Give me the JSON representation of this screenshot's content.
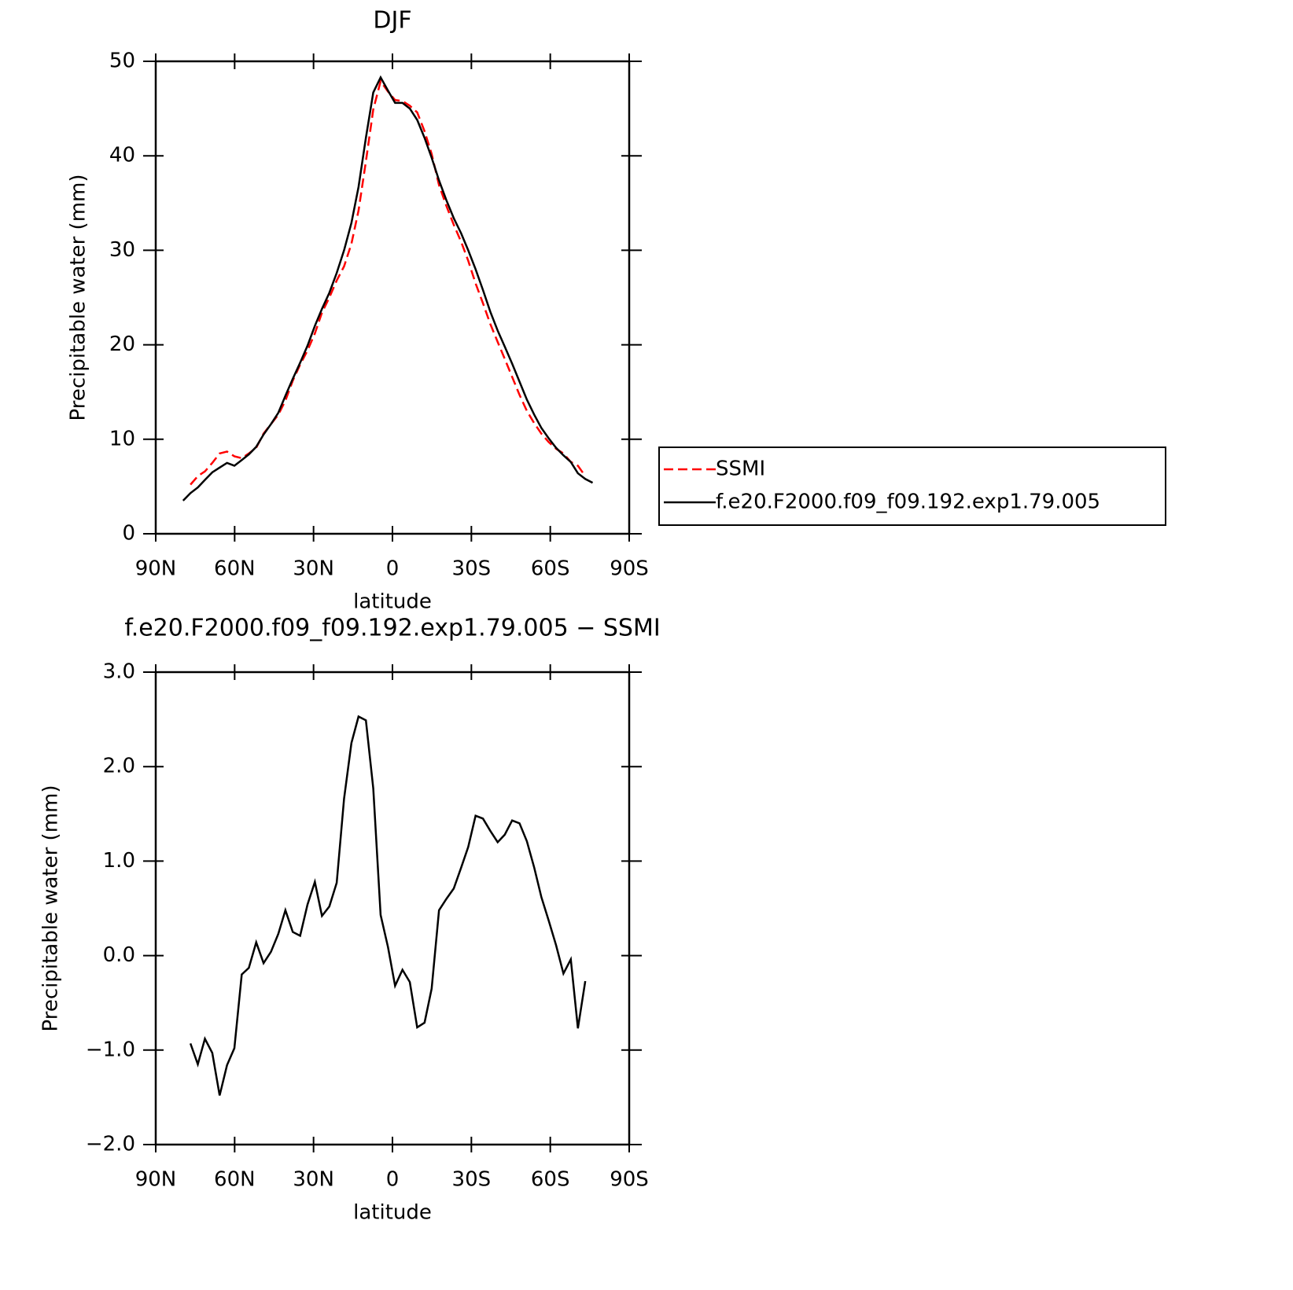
{
  "chart_data": [
    {
      "type": "line",
      "title": "DJF",
      "xlabel": "latitude",
      "ylabel": "Precipitable water (mm)",
      "xlim": [
        90,
        -90
      ],
      "xticks": [
        {
          "value": 90,
          "label": "90N"
        },
        {
          "value": 60,
          "label": "60N"
        },
        {
          "value": 30,
          "label": "30N"
        },
        0,
        {
          "value": -30,
          "label": "30S"
        },
        {
          "value": -60,
          "label": "60S"
        },
        {
          "value": -90,
          "label": "90S"
        }
      ],
      "ylim": [
        0,
        50
      ],
      "yticks": [
        0,
        10,
        20,
        30,
        40,
        50
      ],
      "legend": "right",
      "series": [
        {
          "name": "SSMI",
          "color": "#ff0000",
          "linestyle": "dashed",
          "x": [
            76.8,
            74.0,
            71.3,
            68.5,
            65.7,
            62.9,
            60.1,
            57.3,
            54.6,
            51.8,
            49.0,
            46.2,
            43.4,
            40.7,
            37.9,
            35.1,
            32.3,
            29.5,
            26.8,
            24.0,
            21.2,
            18.4,
            15.6,
            12.9,
            10.1,
            7.3,
            4.5,
            1.7,
            -1.0,
            -3.8,
            -6.6,
            -9.4,
            -12.2,
            -14.9,
            -17.7,
            -20.5,
            -23.3,
            -26.1,
            -28.8,
            -31.6,
            -34.4,
            -37.2,
            -40.0,
            -42.7,
            -45.5,
            -48.3,
            -51.1,
            -53.9,
            -56.6,
            -59.4,
            -62.2,
            -65.0,
            -67.8,
            -70.5,
            -73.3
          ],
          "values": [
            5.2,
            6.1,
            6.6,
            7.5,
            8.5,
            8.7,
            8.2,
            8.0,
            8.5,
            9.1,
            10.6,
            11.6,
            12.6,
            14.1,
            16.2,
            17.9,
            19.4,
            21.2,
            23.4,
            25.0,
            26.8,
            28.3,
            30.7,
            34.2,
            39.4,
            44.9,
            47.9,
            46.8,
            45.9,
            45.8,
            45.3,
            44.6,
            42.6,
            40.2,
            36.9,
            34.7,
            32.7,
            30.9,
            28.9,
            26.5,
            24.4,
            22.2,
            20.3,
            18.5,
            16.6,
            14.7,
            13.0,
            11.7,
            10.6,
            9.7,
            9.0,
            8.5,
            7.6,
            7.2,
            6.1
          ]
        },
        {
          "name": "f.e20.F2000.f09_f09.192.exp1.79.005",
          "color": "#000000",
          "linestyle": "solid",
          "x": [
            79.6,
            76.8,
            74.0,
            71.3,
            68.5,
            65.7,
            62.9,
            60.1,
            57.3,
            54.6,
            51.8,
            49.0,
            46.2,
            43.4,
            40.7,
            37.9,
            35.1,
            32.3,
            29.5,
            26.8,
            24.0,
            21.2,
            18.4,
            15.6,
            12.9,
            10.1,
            7.3,
            4.5,
            1.7,
            -1.0,
            -3.8,
            -6.6,
            -9.4,
            -12.2,
            -14.9,
            -17.7,
            -20.5,
            -23.3,
            -26.1,
            -28.8,
            -31.6,
            -34.4,
            -37.2,
            -40.0,
            -42.7,
            -45.5,
            -48.3,
            -51.1,
            -53.9,
            -56.6,
            -59.4,
            -62.2,
            -65.0,
            -67.8,
            -70.5,
            -73.3,
            -76.1
          ],
          "values": [
            3.5,
            4.3,
            4.9,
            5.7,
            6.5,
            7.0,
            7.5,
            7.2,
            7.8,
            8.4,
            9.2,
            10.5,
            11.6,
            12.8,
            14.6,
            16.4,
            18.1,
            19.9,
            22.0,
            23.8,
            25.5,
            27.6,
            30.0,
            32.9,
            36.7,
            41.9,
            46.7,
            48.3,
            46.9,
            45.6,
            45.6,
            45.0,
            43.8,
            41.9,
            39.8,
            37.4,
            35.3,
            33.4,
            31.8,
            30.0,
            28.0,
            25.8,
            23.5,
            21.5,
            19.8,
            18.0,
            16.1,
            14.2,
            12.6,
            11.2,
            10.1,
            9.1,
            8.3,
            7.6,
            6.4,
            5.8,
            5.4
          ]
        }
      ]
    },
    {
      "type": "line",
      "title": "f.e20.F2000.f09_f09.192.exp1.79.005 − SSMI",
      "xlabel": "latitude",
      "ylabel": "Precipitable water (mm)",
      "xlim": [
        90,
        -90
      ],
      "xticks": [
        {
          "value": 90,
          "label": "90N"
        },
        {
          "value": 60,
          "label": "60N"
        },
        {
          "value": 30,
          "label": "30N"
        },
        0,
        {
          "value": -30,
          "label": "30S"
        },
        {
          "value": -60,
          "label": "60S"
        },
        {
          "value": -90,
          "label": "90S"
        }
      ],
      "ylim": [
        -2,
        3
      ],
      "yticks": [
        {
          "value": -2,
          "label": "−2.0"
        },
        {
          "value": -1,
          "label": "−1.0"
        },
        {
          "value": 0,
          "label": "0.0"
        },
        {
          "value": 1,
          "label": "1.0"
        },
        {
          "value": 2,
          "label": "2.0"
        },
        {
          "value": 3,
          "label": "3.0"
        }
      ],
      "series": [
        {
          "color": "#000000",
          "linestyle": "solid",
          "x": [
            76.8,
            74.0,
            71.3,
            68.5,
            65.7,
            62.9,
            60.1,
            57.3,
            54.6,
            51.8,
            49.0,
            46.2,
            43.4,
            40.7,
            37.9,
            35.1,
            32.3,
            29.5,
            26.8,
            24.0,
            21.2,
            18.4,
            15.6,
            12.9,
            10.1,
            7.3,
            4.5,
            1.7,
            -1.0,
            -3.8,
            -6.6,
            -9.4,
            -12.2,
            -14.9,
            -17.7,
            -20.5,
            -23.3,
            -26.1,
            -28.8,
            -31.6,
            -34.4,
            -37.2,
            -40.0,
            -42.7,
            -45.5,
            -48.3,
            -51.1,
            -53.9,
            -56.6,
            -59.4,
            -62.2,
            -65.0,
            -67.8,
            -70.5,
            -73.3
          ],
          "values": [
            -0.93,
            -1.15,
            -0.88,
            -1.03,
            -1.48,
            -1.16,
            -0.98,
            -0.2,
            -0.13,
            0.14,
            -0.08,
            0.04,
            0.23,
            0.48,
            0.25,
            0.21,
            0.54,
            0.78,
            0.42,
            0.52,
            0.77,
            1.66,
            2.25,
            2.53,
            2.49,
            1.77,
            0.43,
            0.09,
            -0.32,
            -0.15,
            -0.28,
            -0.76,
            -0.71,
            -0.35,
            0.48,
            0.6,
            0.71,
            0.93,
            1.15,
            1.48,
            1.45,
            1.32,
            1.2,
            1.28,
            1.43,
            1.4,
            1.21,
            0.93,
            0.62,
            0.37,
            0.11,
            -0.19,
            -0.04,
            -0.77,
            -0.27
          ]
        }
      ]
    }
  ]
}
